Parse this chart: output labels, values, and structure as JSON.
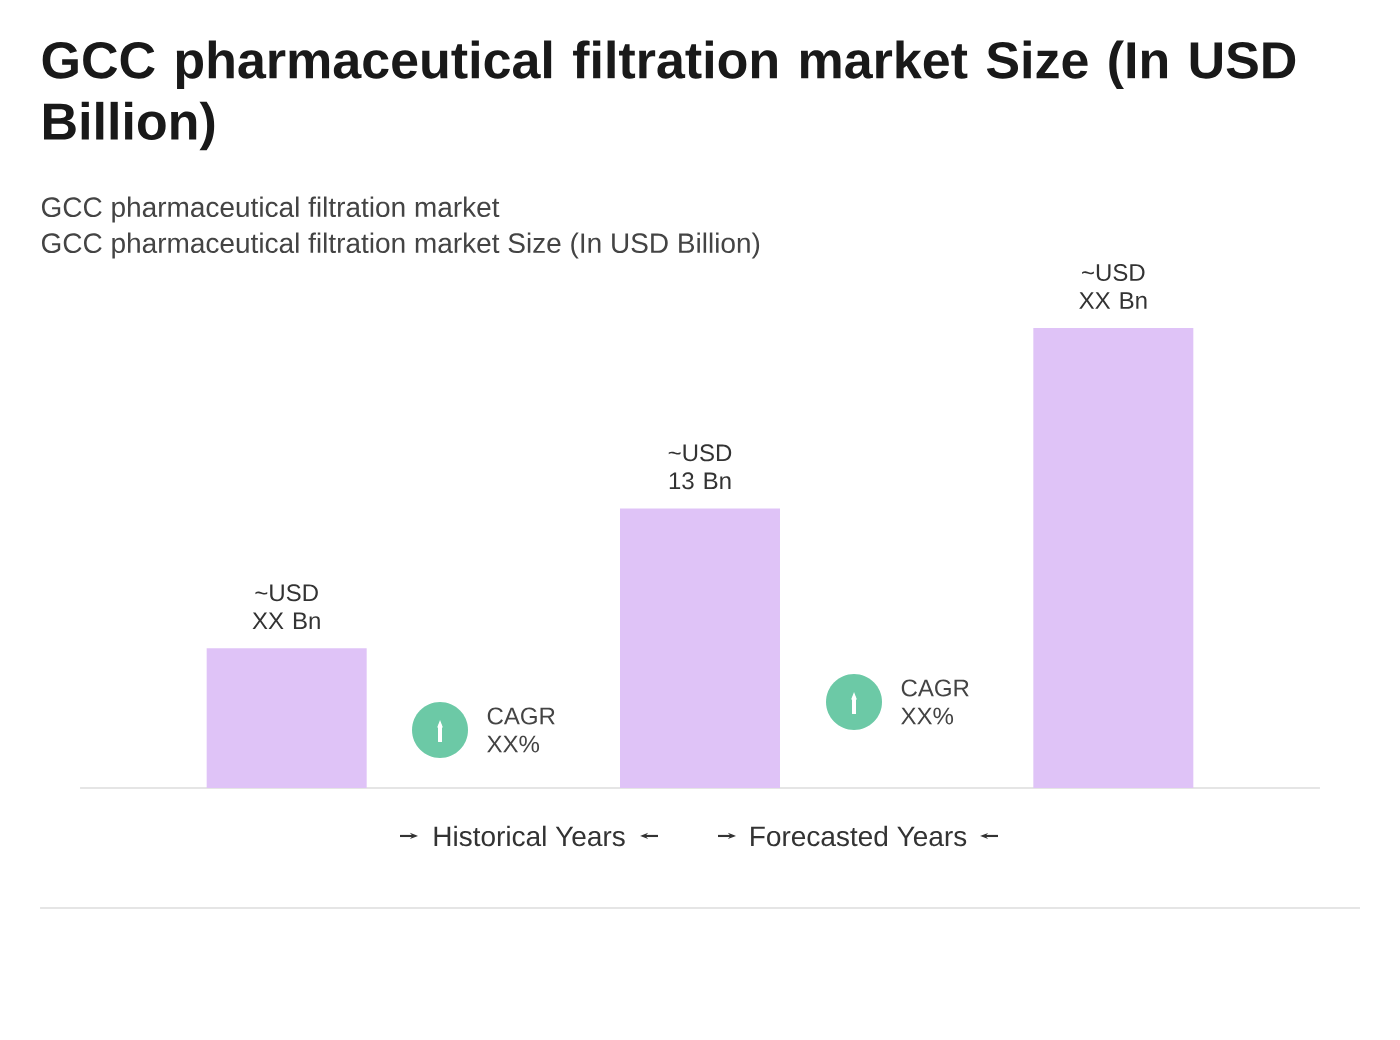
{
  "chart_data": {
    "type": "bar",
    "title": "GCC pharmaceutical filtration market Size (In USD Billion)",
    "subtitle": "GCC pharmaceutical filtration market",
    "categories": [
      null,
      null,
      null
    ],
    "values": [
      6.5,
      13,
      21.4
    ],
    "color": "#dfc3f7",
    "value_labels": [
      "~USD XX Bn",
      "~USD 13 Bn",
      "~USD XX Bn"
    ],
    "annotations": [
      "GCC pharmaceutical filtration market Size (In USD Billion)",
      "CAGR XX%",
      "CAGR XX%",
      "Historical Years",
      "Forecasted Years"
    ]
  }
}
